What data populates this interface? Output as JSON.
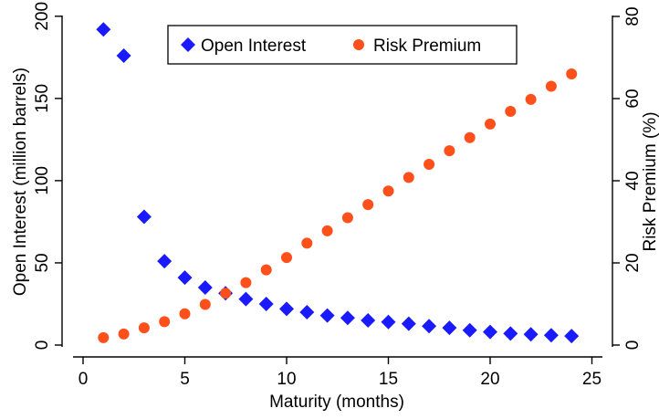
{
  "chart_data": {
    "type": "scatter",
    "x_axis": {
      "label": "Maturity (months)",
      "range": [
        0,
        25
      ],
      "ticks": [
        0,
        5,
        10,
        15,
        20,
        25
      ]
    },
    "y_axis_left": {
      "label": "Open Interest (million barrels)",
      "range": [
        0,
        200
      ],
      "ticks": [
        0,
        50,
        100,
        150,
        200
      ]
    },
    "y_axis_right": {
      "label": "Risk Premium (%)",
      "range": [
        0,
        80
      ],
      "ticks": [
        0,
        20,
        40,
        60,
        80
      ]
    },
    "legend": {
      "placement": "top-center",
      "boxed": true
    },
    "grid": false,
    "series": [
      {
        "name": "Open Interest",
        "axis": "left",
        "marker": "diamond",
        "color": "#1a1aff",
        "x": [
          1,
          2,
          3,
          4,
          5,
          6,
          7,
          8,
          9,
          10,
          11,
          12,
          13,
          14,
          15,
          16,
          17,
          18,
          19,
          20,
          21,
          22,
          23,
          24
        ],
        "y": [
          192,
          176,
          78,
          51,
          41,
          35,
          31.5,
          28,
          25,
          22,
          20,
          18,
          16.5,
          15,
          14,
          13,
          11.5,
          10.5,
          9,
          8,
          7,
          6.5,
          6,
          5.5
        ]
      },
      {
        "name": "Risk Premium",
        "axis": "right",
        "marker": "circle",
        "color": "#ff4f1a",
        "x": [
          1,
          2,
          3,
          4,
          5,
          6,
          7,
          8,
          9,
          10,
          11,
          12,
          13,
          14,
          15,
          16,
          17,
          18,
          19,
          20,
          21,
          22,
          23,
          24
        ],
        "y": [
          1.8,
          2.7,
          4.2,
          5.7,
          7.6,
          9.9,
          12.6,
          15.2,
          18.3,
          21.3,
          24.8,
          27.8,
          31.0,
          34.2,
          37.5,
          40.8,
          44.0,
          47.3,
          50.5,
          53.8,
          56.9,
          59.8,
          63.0,
          66.0
        ]
      }
    ]
  }
}
